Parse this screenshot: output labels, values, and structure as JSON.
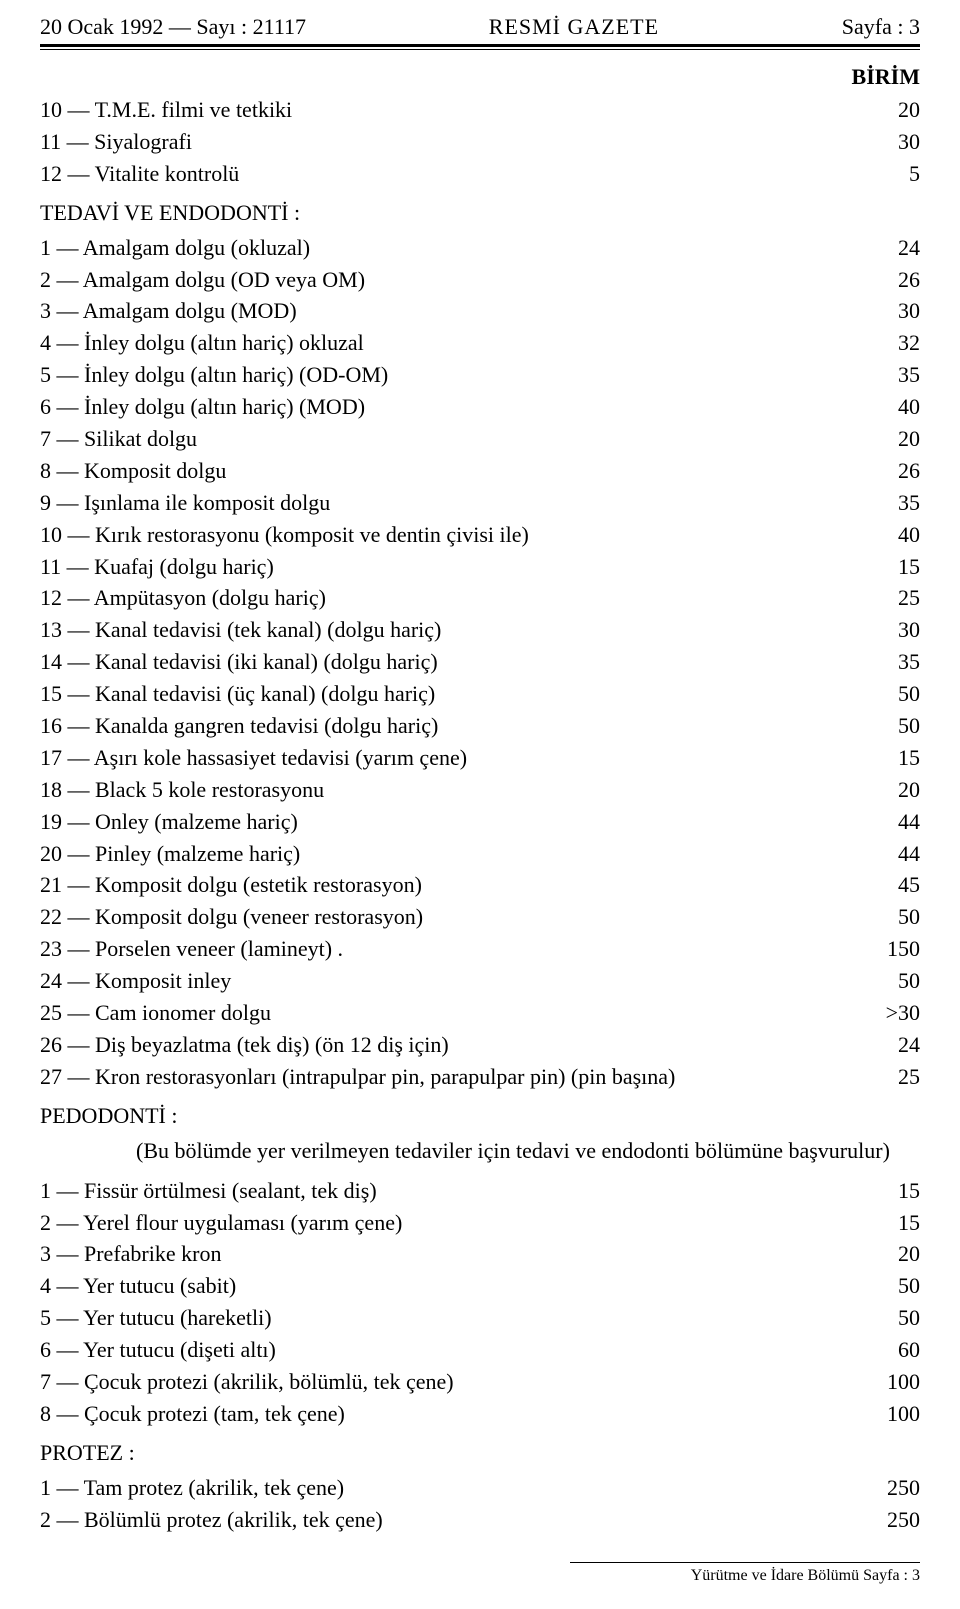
{
  "header": {
    "left": "20 Ocak 1992 — Sayı : 21117",
    "center": "RESMİ GAZETE",
    "right": "Sayfa : 3"
  },
  "birim_label": "BİRİM",
  "top_items": [
    {
      "label": "10 — T.M.E. filmi ve tetkiki",
      "value": "20"
    },
    {
      "label": "11 — Siyalografi",
      "value": "30"
    },
    {
      "label": "12 — Vitalite kontrolü",
      "value": "5"
    }
  ],
  "section1": {
    "title": "TEDAVİ VE ENDODONTİ :",
    "items": [
      {
        "label": "1 — Amalgam dolgu (okluzal)",
        "value": "24"
      },
      {
        "label": "2 — Amalgam dolgu (OD veya OM)",
        "value": "26"
      },
      {
        "label": "3 — Amalgam dolgu (MOD)",
        "value": "30"
      },
      {
        "label": "4 — İnley dolgu (altın hariç) okluzal",
        "value": "32"
      },
      {
        "label": "5 — İnley dolgu (altın hariç) (OD-OM)",
        "value": "35"
      },
      {
        "label": "6 — İnley dolgu (altın hariç) (MOD)",
        "value": "40"
      },
      {
        "label": "7 — Silikat dolgu",
        "value": "20"
      },
      {
        "label": "8 — Komposit dolgu",
        "value": "26"
      },
      {
        "label": "9 — Işınlama ile komposit dolgu",
        "value": "35"
      },
      {
        "label": "10 — Kırık restorasyonu (komposit ve dentin çivisi ile)",
        "value": "40"
      },
      {
        "label": "11 — Kuafaj (dolgu hariç)",
        "value": "15"
      },
      {
        "label": "12 — Ampütasyon (dolgu hariç)",
        "value": "25"
      },
      {
        "label": "13 — Kanal tedavisi (tek kanal) (dolgu hariç)",
        "value": "30"
      },
      {
        "label": "14 — Kanal tedavisi (iki kanal) (dolgu hariç)",
        "value": "35"
      },
      {
        "label": "15 — Kanal tedavisi (üç kanal) (dolgu hariç)",
        "value": "50"
      },
      {
        "label": "16 — Kanalda gangren tedavisi (dolgu hariç)",
        "value": "50"
      },
      {
        "label": "17 — Aşırı kole hassasiyet tedavisi (yarım çene)",
        "value": "15"
      },
      {
        "label": "18 — Black 5 kole restorasyonu",
        "value": "20"
      },
      {
        "label": "19 — Onley (malzeme hariç)",
        "value": "44"
      },
      {
        "label": "20 — Pinley (malzeme hariç)",
        "value": "44"
      },
      {
        "label": "21 — Komposit dolgu (estetik restorasyon)",
        "value": "45"
      },
      {
        "label": "22 — Komposit dolgu (veneer restorasyon)",
        "value": "50"
      },
      {
        "label": "23 — Porselen veneer (lamineyt)   .",
        "value": "150"
      },
      {
        "label": "24 — Komposit inley",
        "value": "50"
      },
      {
        "label": "25 — Cam ionomer dolgu",
        "value": "˃30"
      },
      {
        "label": "26 — Diş beyazlatma (tek diş) (ön 12 diş için)",
        "value": "24"
      },
      {
        "label": "27 — Kron restorasyonları (intrapulpar pin, parapulpar pin) (pin başına)",
        "value": "25"
      }
    ]
  },
  "section2": {
    "title": "PEDODONTİ :",
    "note": "(Bu bölümde yer verilmeyen tedaviler için tedavi ve endodonti bölümüne başvurulur)",
    "items": [
      {
        "label": "1 — Fissür örtülmesi (sealant, tek diş)",
        "value": "15"
      },
      {
        "label": "2 — Yerel flour uygulaması (yarım çene)",
        "value": "15"
      },
      {
        "label": "3 — Prefabrike kron",
        "value": "20"
      },
      {
        "label": "4 — Yer tutucu (sabit)",
        "value": "50"
      },
      {
        "label": "5 — Yer tutucu (hareketli)",
        "value": "50"
      },
      {
        "label": "6 — Yer tutucu (dişeti altı)",
        "value": "60"
      },
      {
        "label": "7 — Çocuk protezi (akrilik, bölümlü, tek çene)",
        "value": "100"
      },
      {
        "label": "8 — Çocuk protezi (tam, tek çene)",
        "value": "100"
      }
    ]
  },
  "section3": {
    "title": "PROTEZ :",
    "items": [
      {
        "label": "1 — Tam protez (akrilik, tek çene)",
        "value": "250"
      },
      {
        "label": "2 — Bölümlü protez (akrilik, tek çene)",
        "value": "250"
      }
    ]
  },
  "footer": "Yürütme ve İdare Bölümü Sayfa : 3"
}
